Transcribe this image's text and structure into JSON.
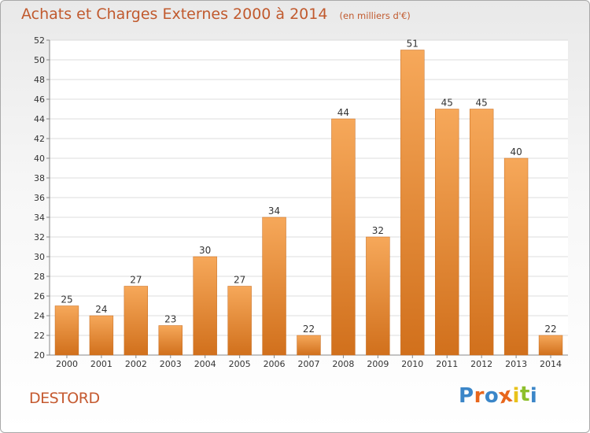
{
  "title": "Achats et Charges Externes 2000 à 2014",
  "subtitle": "(en milliers d'€)",
  "place": "DESTORD",
  "brand": {
    "text": "Proxiti",
    "letter_colors": [
      "#3b86c8",
      "#e8661b",
      "#3b86c8",
      "#e8661b",
      "#e8c21b",
      "#8dbf2b",
      "#3b86c8"
    ]
  },
  "colors": {
    "bar_light": "#f6a85a",
    "bar_dark": "#d1701c",
    "title": "#c15a2e",
    "axis": "#666666"
  },
  "chart_data": {
    "type": "bar",
    "categories": [
      "2000",
      "2001",
      "2002",
      "2003",
      "2004",
      "2005",
      "2006",
      "2007",
      "2008",
      "2009",
      "2010",
      "2011",
      "2012",
      "2013",
      "2014"
    ],
    "values": [
      25,
      24,
      27,
      23,
      30,
      27,
      34,
      22,
      44,
      32,
      51,
      45,
      45,
      40,
      22
    ],
    "title": "Achats et Charges Externes 2000 à 2014",
    "ylim": [
      20,
      52
    ],
    "yticks": [
      20,
      22,
      24,
      26,
      28,
      30,
      32,
      34,
      36,
      38,
      40,
      42,
      44,
      46,
      48,
      50,
      52
    ],
    "grid": true
  }
}
